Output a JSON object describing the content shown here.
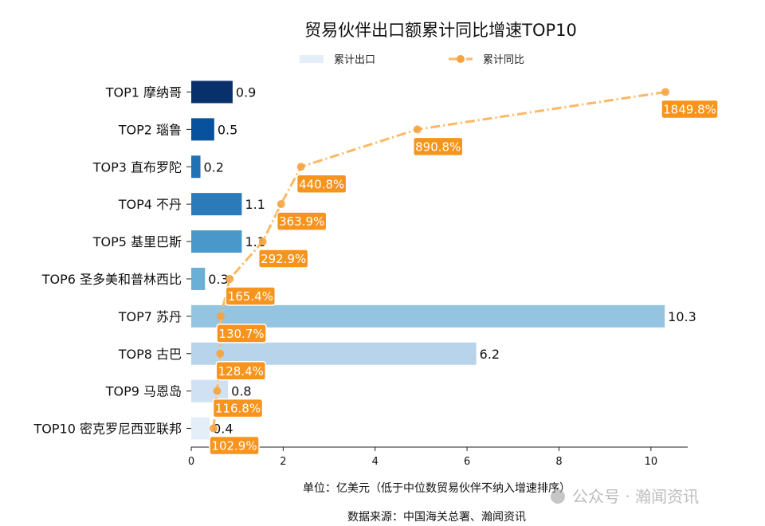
{
  "chart_data": {
    "type": "bar",
    "title": "贸易伙伴出口额累计同比增速TOP10",
    "categories": [
      "TOP1 摩纳哥",
      "TOP2 瑙鲁",
      "TOP3 直布罗陀",
      "TOP4 不丹",
      "TOP5 基里巴斯",
      "TOP6 圣多美和普林西比",
      "TOP7 苏丹",
      "TOP8 古巴",
      "TOP9 马恩岛",
      "TOP10 密克罗尼西亚联邦"
    ],
    "series": [
      {
        "name": "累计出口",
        "type": "bar",
        "values": [
          0.9,
          0.5,
          0.2,
          1.1,
          1.1,
          0.3,
          10.3,
          6.2,
          0.8,
          0.4
        ],
        "value_labels": [
          "0.9",
          "0.5",
          "0.2",
          "1.1",
          "1.1",
          "0.3",
          "10.3",
          "6.2",
          "0.8",
          "0.4"
        ]
      },
      {
        "name": "累计同比",
        "type": "line",
        "values": [
          1849.8,
          890.8,
          440.8,
          363.9,
          292.9,
          165.4,
          130.7,
          128.4,
          116.8,
          102.9
        ],
        "value_labels": [
          "1849.8%",
          "890.8%",
          "440.8%",
          "363.9%",
          "292.9%",
          "165.4%",
          "130.7%",
          "128.4%",
          "116.8%",
          "102.9%"
        ]
      }
    ],
    "xlim": [
      0,
      10.8
    ],
    "xticks": [
      "0",
      "2",
      "4",
      "6",
      "8",
      "10"
    ],
    "xlabel": "单位：亿美元（低于中位数贸易伙伴不纳入增速排序）",
    "legend_placement": "top-center",
    "grid": false,
    "colors": {
      "bars": [
        "#08306b",
        "#08519c",
        "#2171b5",
        "#2b7bba",
        "#4a98c9",
        "#6baed6",
        "#94c4df",
        "#b7d4ea",
        "#cfe1f2",
        "#e3eef9"
      ],
      "line": "#fdb863",
      "marker": "#f4a340",
      "label_box": "#f7941d"
    }
  },
  "source": "数据来源：中国海关总署、瀚闻资讯",
  "watermark": "公众号 · 瀚闻资讯"
}
